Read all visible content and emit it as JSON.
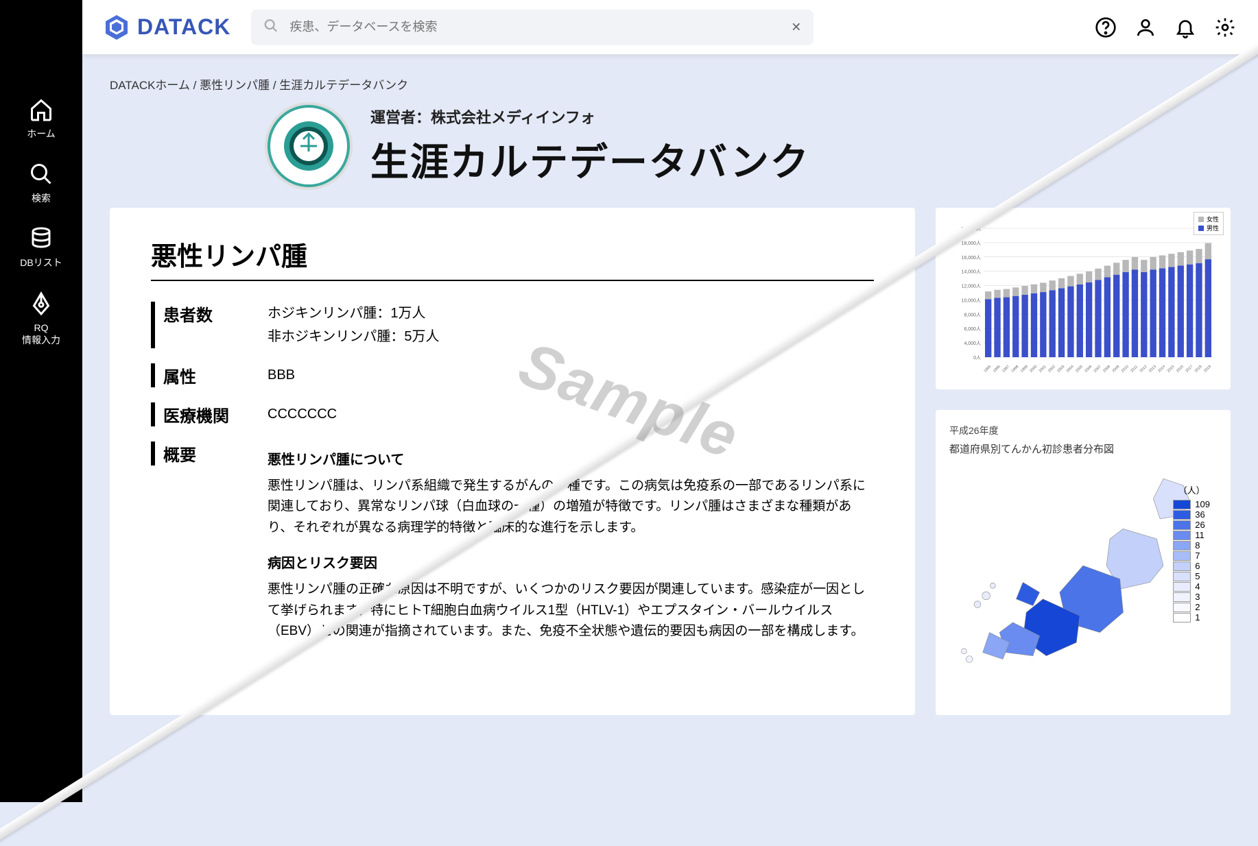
{
  "brand": "DATACK",
  "search": {
    "placeholder": "疾患、データベースを検索"
  },
  "sidebar": [
    {
      "key": "home",
      "label": "ホーム"
    },
    {
      "key": "search",
      "label": "検索"
    },
    {
      "key": "dblist",
      "label": "DBリスト"
    },
    {
      "key": "rq",
      "label": "RQ\n情報入力"
    }
  ],
  "breadcrumb": [
    {
      "label": "DATACKホーム"
    },
    {
      "label": "悪性リンパ腫"
    },
    {
      "label": "生涯カルテデータバンク"
    }
  ],
  "header": {
    "operator": "運営者：株式会社メディインフォ",
    "title": "生涯カルテデータバンク"
  },
  "disease": {
    "title": "悪性リンパ腫",
    "rows": [
      {
        "label": "患者数",
        "value": "ホジキンリンパ腫：1万人\n非ホジキンリンパ腫：5万人"
      },
      {
        "label": "属性",
        "value": "BBB"
      },
      {
        "label": "医療機関",
        "value": "CCCCCCC"
      }
    ],
    "overview_label": "概要",
    "sections": [
      {
        "heading": "悪性リンパ腫について",
        "body": "悪性リンパ腫は、リンパ系組織で発生するがんの一種です。この病気は免疫系の一部であるリンパ系に関連しており、異常なリンパ球（白血球の一種）の増殖が特徴です。リンパ腫はさまざまな種類があり、それぞれが異なる病理学的特徴と臨床的な進行を示します。"
      },
      {
        "heading": "病因とリスク要因",
        "body": "悪性リンパ腫の正確な原因は不明ですが、いくつかのリスク要因が関連しています。感染症が一因として挙げられます。特にヒトT細胞白血病ウイルス1型（HTLV-1）やエプスタイン・バールウイルス（EBV）との関連が指摘されています。また、免疫不全状態や遺伝的要因も病因の一部を構成します。"
      }
    ]
  },
  "watermark": "Sample",
  "chart": {
    "type": "stacked-bar",
    "legend": [
      {
        "label": "女性",
        "color": "#b8b8b8"
      },
      {
        "label": "男性",
        "color": "#3a4fc9"
      }
    ],
    "y_ticks": [
      "20,000人",
      "18,000人",
      "16,000人",
      "14,000人",
      "12,000人",
      "10,000人",
      "8,000人",
      "6,000人",
      "4,000人",
      "0人"
    ],
    "y_max": 20000,
    "years": [
      "1995",
      "1996",
      "1997",
      "1998",
      "1999",
      "2000",
      "2001",
      "2002",
      "2003",
      "2004",
      "2005",
      "2006",
      "2007",
      "2008",
      "2009",
      "2010",
      "2011",
      "2012",
      "2013",
      "2014",
      "2015",
      "2016",
      "2017",
      "2018",
      "2019"
    ],
    "male": [
      9000,
      9200,
      9300,
      9500,
      9700,
      9900,
      10100,
      10400,
      10700,
      11000,
      11300,
      11600,
      12000,
      12400,
      12800,
      13200,
      13600,
      13200,
      13600,
      13800,
      14000,
      14200,
      14400,
      14600,
      15200
    ],
    "female": [
      1200,
      1250,
      1280,
      1320,
      1360,
      1400,
      1450,
      1500,
      1550,
      1600,
      1650,
      1700,
      1750,
      1800,
      1850,
      1900,
      1950,
      1900,
      1950,
      2000,
      2050,
      2100,
      2150,
      2200,
      2500
    ],
    "colors": {
      "male": "#3a4fc9",
      "female": "#b8b8b8",
      "grid": "#d0d0d0",
      "axis": "#666"
    }
  },
  "map": {
    "year_label": "平成26年度",
    "title": "都道府県別てんかん初診患者分布図",
    "legend_title": "（人）",
    "legend_bins": [
      {
        "value": "109",
        "color": "#1646d6"
      },
      {
        "value": "36",
        "color": "#2e5ce0"
      },
      {
        "value": "26",
        "color": "#4a74e8"
      },
      {
        "value": "11",
        "color": "#6a8cf0"
      },
      {
        "value": "8",
        "color": "#8aa6f4"
      },
      {
        "value": "7",
        "color": "#a8bcf8"
      },
      {
        "value": "6",
        "color": "#c2d0fa"
      },
      {
        "value": "5",
        "color": "#d8e0fc"
      },
      {
        "value": "4",
        "color": "#e8ecfd"
      },
      {
        "value": "3",
        "color": "#f0f3fe"
      },
      {
        "value": "2",
        "color": "#f7f9ff"
      },
      {
        "value": "1",
        "color": "#ffffff"
      }
    ]
  }
}
